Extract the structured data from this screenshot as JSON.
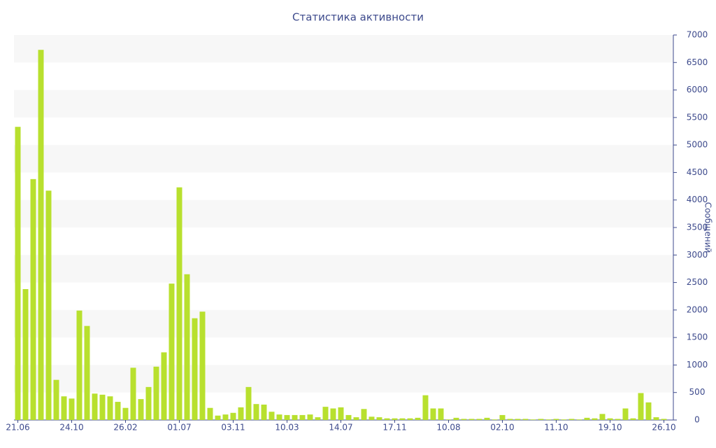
{
  "chart_data": {
    "type": "bar",
    "title": "Статистика активности",
    "y_label": "Сообщений",
    "categories": [
      "21.06",
      null,
      null,
      null,
      null,
      null,
      null,
      "24.10",
      null,
      null,
      null,
      null,
      null,
      null,
      "26.02",
      null,
      null,
      null,
      null,
      null,
      null,
      "01.07",
      null,
      null,
      null,
      null,
      null,
      null,
      "03.11",
      null,
      null,
      null,
      null,
      null,
      null,
      "10.03",
      null,
      null,
      null,
      null,
      null,
      null,
      "14.07",
      null,
      null,
      null,
      null,
      null,
      null,
      "17.11",
      null,
      null,
      null,
      null,
      null,
      null,
      "10.08",
      null,
      null,
      null,
      null,
      null,
      null,
      "02.10",
      null,
      null,
      null,
      null,
      null,
      null,
      "11.10",
      null,
      null,
      null,
      null,
      null,
      null,
      "19.10",
      null,
      null,
      null,
      null,
      null,
      null,
      "26.10"
    ],
    "values": [
      5330,
      2380,
      4380,
      6730,
      4170,
      730,
      430,
      390,
      1990,
      1710,
      480,
      460,
      430,
      330,
      220,
      950,
      380,
      600,
      970,
      1230,
      2480,
      4230,
      2650,
      1850,
      1970,
      220,
      80,
      100,
      130,
      230,
      600,
      290,
      280,
      150,
      100,
      90,
      90,
      90,
      100,
      50,
      240,
      210,
      230,
      90,
      50,
      200,
      60,
      50,
      30,
      30,
      30,
      30,
      40,
      450,
      210,
      210,
      10,
      40,
      20,
      20,
      20,
      40,
      10,
      90,
      20,
      20,
      20,
      10,
      20,
      10,
      20,
      10,
      20,
      10,
      40,
      30,
      110,
      30,
      20,
      210,
      30,
      490,
      320,
      50,
      20
    ],
    "color": "#b8e02e",
    "ylim": [
      0,
      7000
    ],
    "yticks": [
      0,
      500,
      1000,
      1500,
      2000,
      2500,
      3000,
      3500,
      4000,
      4500,
      5000,
      5500,
      6000,
      6500,
      7000
    ],
    "grid": true
  }
}
